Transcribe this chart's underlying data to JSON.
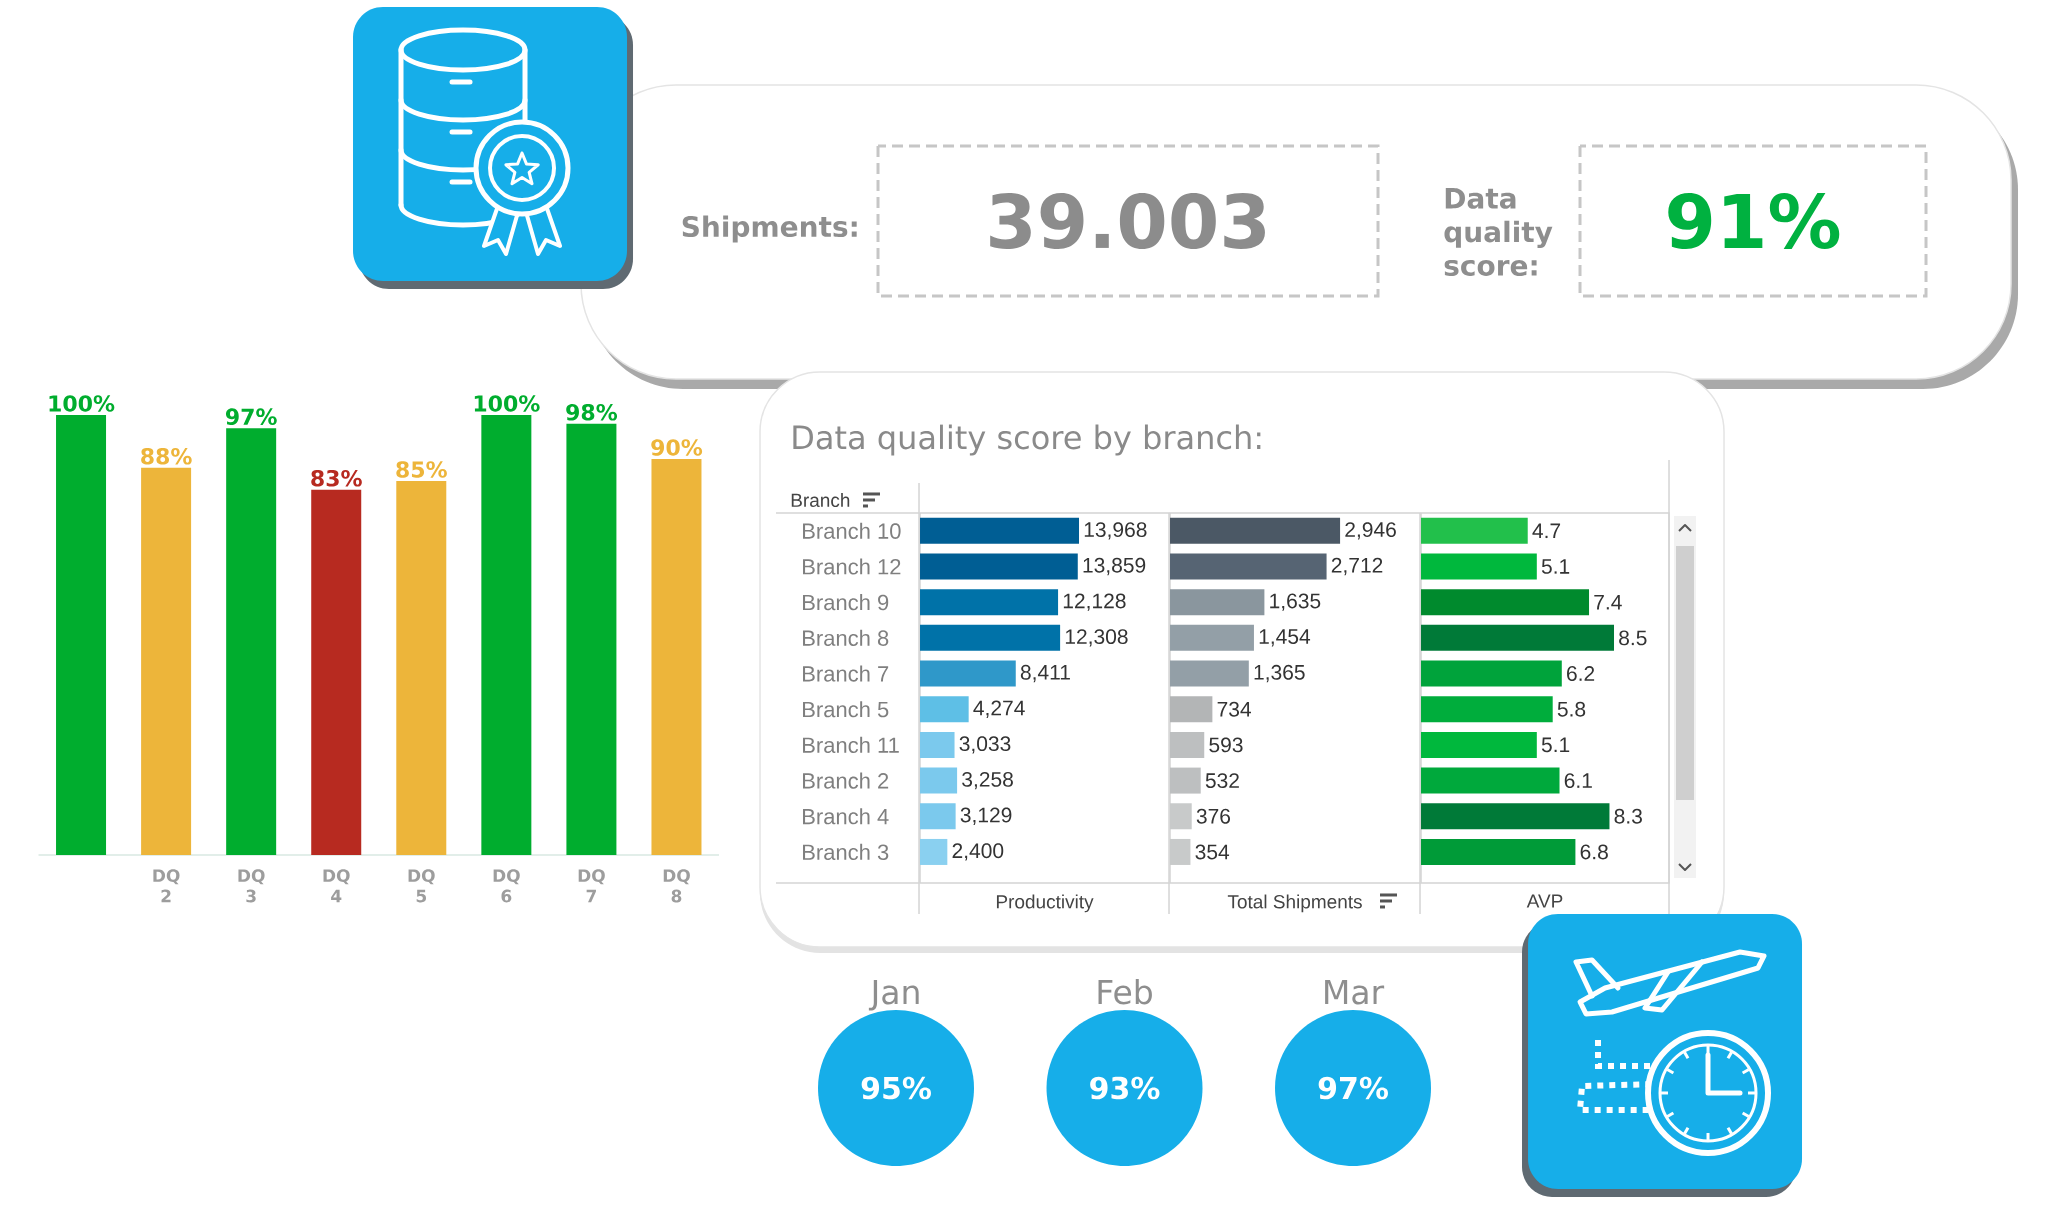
{
  "chart_data": [
    {
      "type": "other",
      "annotations": [
        "Shipments:",
        "39.003",
        "Data quality score:",
        "91%"
      ],
      "colors": [
        "#8e8e8e",
        "#8c8c8c",
        "#8e8e8e",
        "#00b140"
      ]
    },
    {
      "type": "bar",
      "categories": [
        null,
        "DQ 2",
        "DQ 3",
        "DQ 4",
        "DQ 5",
        "DQ 6",
        "DQ 7",
        "DQ 8"
      ],
      "values": [
        100,
        88,
        97,
        83,
        85,
        100,
        98,
        90
      ],
      "value_labels": [
        "100%",
        "88%",
        "97%",
        "83%",
        "85%",
        "100%",
        "98%",
        "90%"
      ],
      "colors": [
        "#00ad2e",
        "#edb53a",
        "#00ad2e",
        "#b72a20",
        "#edb53a",
        "#00ad2e",
        "#00ad2e",
        "#edb53a"
      ],
      "tick_labels": "x"
    },
    {
      "type": "bar",
      "orientation": "horizontal",
      "title": "Data quality score by branch:",
      "ylabel": "Branch",
      "xlabel": "Productivity",
      "categories": [
        "Branch 10",
        "Branch 12",
        "Branch 9",
        "Branch 8",
        "Branch 7",
        "Branch 5",
        "Branch 11",
        "Branch 2",
        "Branch 4",
        "Branch 3"
      ],
      "values": [
        13968,
        13859,
        12128,
        12308,
        8411,
        4274,
        3033,
        3258,
        3129,
        2400
      ],
      "value_labels": [
        "13,968",
        "13,859",
        "12,128",
        "12,308",
        "8,411",
        "4,274",
        "3,033",
        "3,258",
        "3,129",
        "2,400"
      ],
      "colors": [
        "#005e94",
        "#005e94",
        "#0072a8",
        "#0072a8",
        "#2f98c9",
        "#5ebfe6",
        "#7bc9ed",
        "#7bc9ed",
        "#7bc9ed",
        "#8ad0f0"
      ],
      "tick_labels": "y"
    },
    {
      "type": "bar",
      "orientation": "horizontal",
      "xlabel": "Total Shipments",
      "categories": [
        null,
        null,
        null,
        null,
        null,
        null,
        null,
        null,
        null,
        null
      ],
      "values": [
        2946,
        2712,
        1635,
        1454,
        1365,
        734,
        593,
        532,
        376,
        354
      ],
      "value_labels": [
        "2,946",
        "2,712",
        "1,635",
        "1,454",
        "1,365",
        "734",
        "593",
        "532",
        "376",
        "354"
      ],
      "colors": [
        "#4b5865",
        "#566473",
        "#8a969e",
        "#939fa7",
        "#939fa7",
        "#b3b5b6",
        "#bdbfc0",
        "#bdbfc0",
        "#c8caca",
        "#c8caca"
      ]
    },
    {
      "type": "bar",
      "orientation": "horizontal",
      "xlabel": "AVP",
      "categories": [
        null,
        null,
        null,
        null,
        null,
        null,
        null,
        null,
        null,
        null
      ],
      "values": [
        4.7,
        5.1,
        7.4,
        8.5,
        6.2,
        5.8,
        5.1,
        6.1,
        8.3,
        6.8
      ],
      "value_labels": [
        "4.7",
        "5.1",
        "7.4",
        "8.5",
        "6.2",
        "5.8",
        "5.1",
        "6.1",
        "8.3",
        "6.8"
      ],
      "colors": [
        "#22c04b",
        "#00b83d",
        "#008a2d",
        "#007a38",
        "#00a33b",
        "#00ad3c",
        "#00b83d",
        "#00a93c",
        "#007a38",
        "#009b38"
      ]
    },
    {
      "type": "other",
      "categories": [
        "Jan",
        "Feb",
        "Mar"
      ],
      "value_labels": [
        "95%",
        "93%",
        "97%"
      ],
      "color": "#16aee9"
    }
  ]
}
